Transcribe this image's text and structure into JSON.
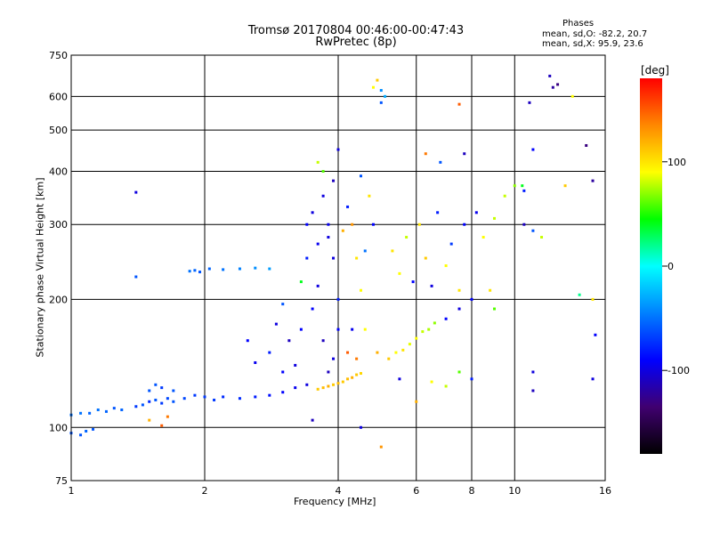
{
  "chart_data": {
    "type": "scatter",
    "title": "Tromsø 20170804 00:46:00-00:47:43",
    "subtitle": "RwPretec (8p)",
    "xlabel": "Frequency [MHz]",
    "ylabel": "Stationary phase Virtual Height [km]",
    "x_scale": "log",
    "y_scale": "log",
    "xlim": [
      1,
      16
    ],
    "ylim": [
      75,
      750
    ],
    "xticks": [
      1,
      2,
      4,
      6,
      8,
      10,
      16
    ],
    "yticks": [
      75,
      100,
      200,
      300,
      400,
      500,
      600,
      750
    ],
    "x_gridlines": [
      2,
      4,
      6,
      8,
      10
    ],
    "y_gridlines": [
      100,
      200,
      300,
      400,
      500,
      600
    ],
    "grid": true,
    "stats": {
      "heading": "Phases",
      "line1": "mean, sd,O: -82.2, 20.7",
      "line2": "mean, sd,X:  95.9, 23.6"
    },
    "colorbar": {
      "label": "[deg]",
      "range": [
        -180,
        180
      ],
      "ticks": [
        100,
        0,
        -100
      ],
      "colors": [
        "#ff0000",
        "#ff8800",
        "#ffff00",
        "#00ff00",
        "#00ffff",
        "#0080ff",
        "#0000ff",
        "#400070",
        "#000000"
      ]
    },
    "series": [
      {
        "points": [
          [
            1.0,
            107,
            -50
          ],
          [
            1.05,
            108,
            -50
          ],
          [
            1.1,
            108,
            -55
          ],
          [
            1.15,
            110,
            -50
          ],
          [
            1.2,
            109,
            -55
          ],
          [
            1.25,
            111,
            -60
          ],
          [
            1.3,
            110,
            -55
          ],
          [
            1.0,
            97,
            -60
          ],
          [
            1.05,
            96,
            -60
          ],
          [
            1.08,
            98,
            -55
          ],
          [
            1.12,
            99,
            -60
          ],
          [
            1.4,
            112,
            -70
          ],
          [
            1.45,
            113,
            -60
          ],
          [
            1.5,
            115,
            -75
          ],
          [
            1.55,
            116,
            -60
          ],
          [
            1.6,
            114,
            -70
          ],
          [
            1.65,
            117,
            -65
          ],
          [
            1.7,
            115,
            -60
          ],
          [
            1.5,
            104,
            120
          ],
          [
            1.6,
            101,
            150
          ],
          [
            1.65,
            106,
            140
          ],
          [
            1.5,
            122,
            -60
          ],
          [
            1.55,
            126,
            -60
          ],
          [
            1.6,
            124,
            -70
          ],
          [
            1.7,
            122,
            -60
          ],
          [
            1.8,
            117,
            -65
          ],
          [
            1.9,
            119,
            -70
          ],
          [
            2.0,
            118,
            -70
          ],
          [
            2.1,
            116,
            -70
          ],
          [
            2.2,
            118,
            -75
          ],
          [
            2.4,
            117,
            -75
          ],
          [
            2.6,
            118,
            -80
          ],
          [
            2.8,
            119,
            -85
          ],
          [
            3.0,
            121,
            -90
          ],
          [
            3.2,
            124,
            -95
          ],
          [
            3.4,
            126,
            -100
          ],
          [
            1.85,
            233,
            -50
          ],
          [
            1.9,
            234,
            -55
          ],
          [
            1.95,
            232,
            -60
          ],
          [
            2.05,
            236,
            -55
          ],
          [
            2.2,
            235,
            -50
          ],
          [
            2.4,
            236,
            -45
          ],
          [
            2.6,
            237,
            -40
          ],
          [
            2.8,
            236,
            -35
          ],
          [
            1.4,
            357,
            -100
          ],
          [
            1.4,
            226,
            -60
          ],
          [
            2.5,
            160,
            -90
          ],
          [
            2.6,
            142,
            -95
          ],
          [
            2.8,
            150,
            -80
          ],
          [
            2.9,
            175,
            -100
          ],
          [
            3.0,
            135,
            -90
          ],
          [
            3.0,
            195,
            -60
          ],
          [
            3.1,
            160,
            -110
          ],
          [
            3.2,
            140,
            -100
          ],
          [
            3.3,
            170,
            -90
          ],
          [
            3.3,
            220,
            40
          ],
          [
            3.4,
            250,
            -80
          ],
          [
            3.4,
            300,
            -90
          ],
          [
            3.5,
            190,
            -90
          ],
          [
            3.5,
            320,
            -100
          ],
          [
            3.6,
            270,
            -95
          ],
          [
            3.6,
            215,
            -100
          ],
          [
            3.7,
            350,
            -100
          ],
          [
            3.7,
            160,
            -110
          ],
          [
            3.8,
            280,
            -100
          ],
          [
            3.8,
            300,
            -95
          ],
          [
            3.9,
            380,
            -110
          ],
          [
            3.9,
            250,
            -100
          ],
          [
            4.0,
            450,
            -100
          ],
          [
            4.0,
            200,
            -80
          ],
          [
            4.0,
            170,
            -90
          ],
          [
            3.9,
            145,
            -100
          ],
          [
            3.8,
            135,
            -110
          ],
          [
            3.7,
            400,
            60
          ],
          [
            3.6,
            420,
            80
          ],
          [
            3.6,
            123,
            110
          ],
          [
            3.7,
            124,
            115
          ],
          [
            3.8,
            125,
            120
          ],
          [
            3.9,
            126,
            110
          ],
          [
            4.0,
            127,
            115
          ],
          [
            4.1,
            128,
            110
          ],
          [
            4.2,
            130,
            115
          ],
          [
            4.3,
            131,
            120
          ],
          [
            4.4,
            133,
            110
          ],
          [
            4.5,
            134,
            105
          ],
          [
            4.1,
            290,
            120
          ],
          [
            4.2,
            330,
            -80
          ],
          [
            4.3,
            300,
            130
          ],
          [
            4.4,
            250,
            100
          ],
          [
            4.5,
            390,
            -60
          ],
          [
            4.5,
            210,
            90
          ],
          [
            4.6,
            260,
            -50
          ],
          [
            4.7,
            350,
            100
          ],
          [
            4.8,
            300,
            -90
          ],
          [
            4.9,
            150,
            120
          ],
          [
            4.2,
            150,
            150
          ],
          [
            4.3,
            170,
            -95
          ],
          [
            4.4,
            145,
            140
          ],
          [
            4.6,
            170,
            90
          ],
          [
            4.8,
            630,
            90
          ],
          [
            4.9,
            655,
            110
          ],
          [
            5.0,
            620,
            -40
          ],
          [
            5.1,
            600,
            -30
          ],
          [
            5.0,
            580,
            -60
          ],
          [
            5.2,
            145,
            110
          ],
          [
            5.4,
            150,
            90
          ],
          [
            5.6,
            152,
            100
          ],
          [
            5.8,
            157,
            85
          ],
          [
            6.0,
            162,
            90
          ],
          [
            6.2,
            168,
            80
          ],
          [
            6.4,
            170,
            75
          ],
          [
            6.6,
            176,
            70
          ],
          [
            7.0,
            180,
            -90
          ],
          [
            7.5,
            190,
            -100
          ],
          [
            5.3,
            260,
            100
          ],
          [
            5.5,
            230,
            90
          ],
          [
            5.7,
            280,
            80
          ],
          [
            5.9,
            220,
            -90
          ],
          [
            6.1,
            300,
            100
          ],
          [
            6.3,
            250,
            110
          ],
          [
            6.5,
            215,
            -100
          ],
          [
            6.7,
            320,
            -80
          ],
          [
            7.0,
            240,
            90
          ],
          [
            7.2,
            270,
            -70
          ],
          [
            7.5,
            210,
            100
          ],
          [
            7.7,
            300,
            -90
          ],
          [
            8.0,
            200,
            -90
          ],
          [
            8.2,
            320,
            -95
          ],
          [
            8.5,
            280,
            90
          ],
          [
            8.8,
            210,
            100
          ],
          [
            9.0,
            310,
            80
          ],
          [
            9.0,
            190,
            60
          ],
          [
            9.5,
            350,
            80
          ],
          [
            10.0,
            370,
            70
          ],
          [
            10.4,
            370,
            40
          ],
          [
            5.5,
            130,
            -100
          ],
          [
            6.0,
            115,
            120
          ],
          [
            6.5,
            128,
            90
          ],
          [
            7.0,
            125,
            80
          ],
          [
            7.5,
            135,
            60
          ],
          [
            8.0,
            130,
            -80
          ],
          [
            6.3,
            440,
            140
          ],
          [
            6.8,
            420,
            -60
          ],
          [
            7.5,
            575,
            150
          ],
          [
            7.7,
            440,
            -110
          ],
          [
            10.8,
            580,
            -110
          ],
          [
            11.0,
            450,
            -90
          ],
          [
            12.0,
            670,
            -110
          ],
          [
            12.2,
            630,
            -120
          ],
          [
            12.5,
            640,
            -130
          ],
          [
            10.5,
            300,
            -110
          ],
          [
            11.0,
            290,
            -60
          ],
          [
            11.5,
            280,
            80
          ],
          [
            13.0,
            370,
            110
          ],
          [
            14.5,
            460,
            -130
          ],
          [
            15.0,
            380,
            -120
          ],
          [
            15.2,
            165,
            -90
          ],
          [
            15.0,
            200,
            100
          ],
          [
            14.0,
            205,
            20
          ],
          [
            13.5,
            600,
            90
          ],
          [
            15.0,
            130,
            -100
          ],
          [
            11.0,
            135,
            -100
          ],
          [
            11.0,
            122,
            -110
          ],
          [
            10.5,
            360,
            -80
          ],
          [
            5.0,
            90,
            130
          ],
          [
            3.5,
            104,
            -110
          ],
          [
            4.5,
            100,
            -100
          ]
        ]
      }
    ]
  }
}
